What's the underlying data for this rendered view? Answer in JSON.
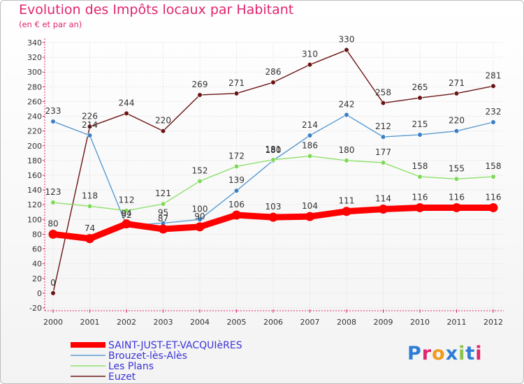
{
  "header": {
    "title": "Evolution des Impôts locaux par Habitant",
    "subtitle": "(en € et par an)"
  },
  "logo": {
    "text": "Proxiti"
  },
  "chart_data": {
    "type": "line",
    "title": "Evolution des Impôts locaux par Habitant",
    "subtitle": "(en € et par an)",
    "xlabel": "",
    "ylabel": "",
    "ylim": [
      -20,
      340
    ],
    "ytick_step": 20,
    "grid": true,
    "legend_position": "bottom-left",
    "x": [
      "2000",
      "2001",
      "2002",
      "2003",
      "2004",
      "2005",
      "2006",
      "2007",
      "2008",
      "2009",
      "2010",
      "2011",
      "2012"
    ],
    "series": [
      {
        "name": "Euzet",
        "color": "#6b1414",
        "point_color": "#6b1414",
        "values": [
          0,
          226,
          244,
          220,
          269,
          271,
          286,
          310,
          330,
          258,
          265,
          271,
          281
        ]
      },
      {
        "name": "Brouzet-lès-Alès",
        "color": "#5a9bd0",
        "point_color": "#3a7fc4",
        "values": [
          233,
          214,
          92,
          95,
          100,
          139,
          180,
          214,
          242,
          212,
          215,
          220,
          232
        ]
      },
      {
        "name": "Les Plans",
        "color": "#8ee06a",
        "point_color": "#7ed957",
        "values": [
          123,
          118,
          112,
          121,
          152,
          172,
          181,
          186,
          180,
          177,
          158,
          155,
          158
        ]
      },
      {
        "name": "SAINT-JUST-ET-VACQUIèRES",
        "color": "#ff0000",
        "point_color": "#ff0000",
        "values": [
          80,
          74,
          94,
          87,
          90,
          106,
          103,
          104,
          111,
          114,
          116,
          116,
          116
        ],
        "label_values": [
          "80",
          "74",
          "94",
          "87",
          "90",
          "106",
          "103",
          "104",
          "111",
          "114",
          "116",
          "116",
          "116"
        ]
      }
    ],
    "legend": [
      "SAINT-JUST-ET-VACQUIèRES",
      "Brouzet-lès-Alès",
      "Les Plans",
      "Euzet"
    ]
  }
}
